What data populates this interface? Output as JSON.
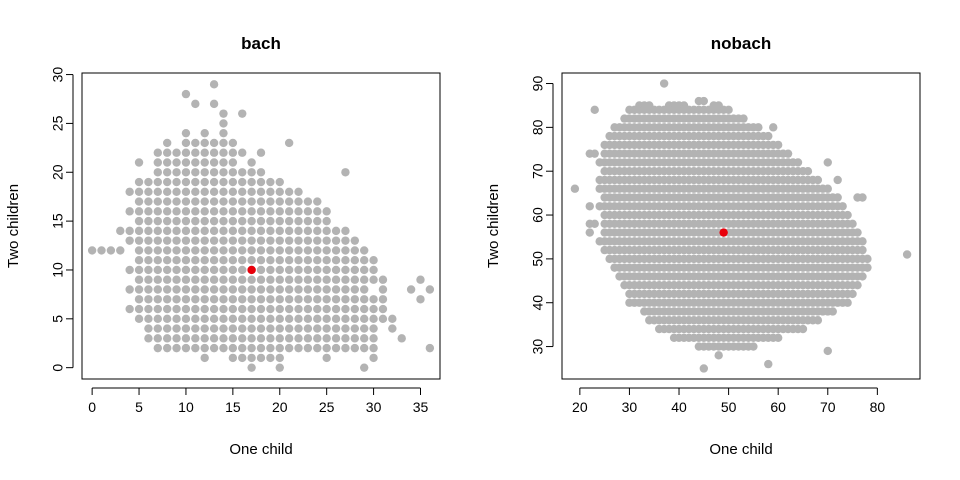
{
  "colors": {
    "points": "#b3b3b3",
    "highlight": "#e8000b",
    "frame": "#000000"
  },
  "chart_data": [
    {
      "type": "scatter",
      "title": "bach",
      "xlabel": "One child",
      "ylabel": "Two children",
      "xlim": [
        -1.08,
        37.08
      ],
      "ylim": [
        -1.16,
        30.16
      ],
      "xticks": [
        0,
        5,
        10,
        15,
        20,
        25,
        30,
        35
      ],
      "yticks": [
        0,
        5,
        10,
        15,
        20,
        25,
        30
      ],
      "grid": false,
      "legend": "none",
      "cloud": {
        "rows": [
          {
            "y": 29,
            "x": [
              [
                13,
                13
              ]
            ]
          },
          {
            "y": 28,
            "x": [
              [
                10,
                10
              ]
            ]
          },
          {
            "y": 27,
            "x": [
              [
                11,
                11
              ],
              [
                13,
                13
              ]
            ]
          },
          {
            "y": 26,
            "x": [
              [
                14,
                14
              ],
              [
                16,
                16
              ]
            ]
          },
          {
            "y": 25,
            "x": [
              [
                14,
                14
              ]
            ]
          },
          {
            "y": 24,
            "x": [
              [
                10,
                10
              ],
              [
                12,
                12
              ],
              [
                14,
                14
              ]
            ]
          },
          {
            "y": 23,
            "x": [
              [
                8,
                8
              ],
              [
                10,
                15
              ],
              [
                21,
                21
              ]
            ]
          },
          {
            "y": 22,
            "x": [
              [
                7,
                16
              ],
              [
                18,
                18
              ]
            ]
          },
          {
            "y": 21,
            "x": [
              [
                5,
                5
              ],
              [
                7,
                15
              ],
              [
                17,
                17
              ]
            ]
          },
          {
            "y": 20,
            "x": [
              [
                7,
                18
              ],
              [
                27,
                27
              ]
            ]
          },
          {
            "y": 19,
            "x": [
              [
                5,
                20
              ]
            ]
          },
          {
            "y": 18,
            "x": [
              [
                4,
                22
              ]
            ]
          },
          {
            "y": 17,
            "x": [
              [
                5,
                24
              ]
            ]
          },
          {
            "y": 16,
            "x": [
              [
                4,
                25
              ]
            ]
          },
          {
            "y": 15,
            "x": [
              [
                5,
                25
              ]
            ]
          },
          {
            "y": 14,
            "x": [
              [
                3,
                27
              ]
            ]
          },
          {
            "y": 13,
            "x": [
              [
                4,
                28
              ]
            ]
          },
          {
            "y": 12,
            "x": [
              [
                0,
                3
              ],
              [
                5,
                29
              ]
            ]
          },
          {
            "y": 11,
            "x": [
              [
                5,
                30
              ]
            ]
          },
          {
            "y": 10,
            "x": [
              [
                4,
                30
              ]
            ]
          },
          {
            "y": 9,
            "x": [
              [
                5,
                31
              ],
              [
                35,
                35
              ]
            ]
          },
          {
            "y": 8,
            "x": [
              [
                4,
                29
              ],
              [
                31,
                31
              ],
              [
                34,
                34
              ],
              [
                36,
                36
              ]
            ]
          },
          {
            "y": 7,
            "x": [
              [
                5,
                31
              ],
              [
                35,
                35
              ]
            ]
          },
          {
            "y": 6,
            "x": [
              [
                4,
                31
              ]
            ]
          },
          {
            "y": 5,
            "x": [
              [
                5,
                32
              ]
            ]
          },
          {
            "y": 4,
            "x": [
              [
                6,
                30
              ],
              [
                32,
                32
              ]
            ]
          },
          {
            "y": 3,
            "x": [
              [
                6,
                30
              ],
              [
                33,
                33
              ]
            ]
          },
          {
            "y": 2,
            "x": [
              [
                7,
                30
              ],
              [
                36,
                36
              ]
            ]
          },
          {
            "y": 1,
            "x": [
              [
                12,
                12
              ],
              [
                15,
                20
              ],
              [
                25,
                25
              ],
              [
                30,
                30
              ]
            ]
          },
          {
            "y": 0,
            "x": [
              [
                17,
                17
              ],
              [
                20,
                20
              ],
              [
                29,
                29
              ]
            ]
          }
        ]
      },
      "highlight_point": {
        "x": 17,
        "y": 10
      }
    },
    {
      "type": "scatter",
      "title": "nobach",
      "xlabel": "One child",
      "ylabel": "Two children",
      "xlim": [
        16.4,
        88.6
      ],
      "ylim": [
        22.6,
        92.4
      ],
      "xticks": [
        20,
        30,
        40,
        50,
        60,
        70,
        80
      ],
      "yticks": [
        30,
        40,
        50,
        60,
        70,
        80,
        90
      ],
      "grid": false,
      "legend": "none",
      "cloud": {
        "rows": [
          {
            "y": 90,
            "x": [
              [
                37,
                37
              ]
            ]
          },
          {
            "y": 86,
            "x": [
              [
                44,
                45
              ]
            ]
          },
          {
            "y": 85,
            "x": [
              [
                32,
                34
              ],
              [
                38,
                41
              ],
              [
                47,
                48
              ]
            ]
          },
          {
            "y": 84,
            "x": [
              [
                23,
                23
              ],
              [
                30,
                50
              ]
            ]
          },
          {
            "y": 82,
            "x": [
              [
                29,
                53
              ]
            ]
          },
          {
            "y": 80,
            "x": [
              [
                27,
                56
              ],
              [
                59,
                59
              ]
            ]
          },
          {
            "y": 78,
            "x": [
              [
                26,
                58
              ]
            ]
          },
          {
            "y": 76,
            "x": [
              [
                25,
                60
              ]
            ]
          },
          {
            "y": 74,
            "x": [
              [
                22,
                23
              ],
              [
                25,
                62
              ]
            ]
          },
          {
            "y": 72,
            "x": [
              [
                24,
                64
              ],
              [
                70,
                70
              ]
            ]
          },
          {
            "y": 70,
            "x": [
              [
                25,
                66
              ]
            ]
          },
          {
            "y": 68,
            "x": [
              [
                24,
                68
              ],
              [
                72,
                72
              ]
            ]
          },
          {
            "y": 66,
            "x": [
              [
                19,
                19
              ],
              [
                24,
                70
              ]
            ]
          },
          {
            "y": 64,
            "x": [
              [
                25,
                72
              ],
              [
                76,
                77
              ]
            ]
          },
          {
            "y": 62,
            "x": [
              [
                22,
                22
              ],
              [
                24,
                73
              ]
            ]
          },
          {
            "y": 60,
            "x": [
              [
                25,
                74
              ]
            ]
          },
          {
            "y": 58,
            "x": [
              [
                22,
                23
              ],
              [
                25,
                75
              ]
            ]
          },
          {
            "y": 56,
            "x": [
              [
                22,
                22
              ],
              [
                25,
                76
              ]
            ]
          },
          {
            "y": 54,
            "x": [
              [
                24,
                77
              ]
            ]
          },
          {
            "y": 52,
            "x": [
              [
                25,
                77
              ]
            ]
          },
          {
            "y": 51,
            "x": [
              [
                86,
                86
              ]
            ]
          },
          {
            "y": 50,
            "x": [
              [
                26,
                78
              ]
            ]
          },
          {
            "y": 48,
            "x": [
              [
                27,
                78
              ]
            ]
          },
          {
            "y": 46,
            "x": [
              [
                28,
                77
              ]
            ]
          },
          {
            "y": 44,
            "x": [
              [
                29,
                76
              ]
            ]
          },
          {
            "y": 42,
            "x": [
              [
                30,
                75
              ]
            ]
          },
          {
            "y": 40,
            "x": [
              [
                30,
                74
              ]
            ]
          },
          {
            "y": 38,
            "x": [
              [
                33,
                71
              ]
            ]
          },
          {
            "y": 36,
            "x": [
              [
                34,
                68
              ]
            ]
          },
          {
            "y": 34,
            "x": [
              [
                36,
                65
              ]
            ]
          },
          {
            "y": 32,
            "x": [
              [
                39,
                60
              ]
            ]
          },
          {
            "y": 30,
            "x": [
              [
                44,
                55
              ]
            ]
          },
          {
            "y": 29,
            "x": [
              [
                70,
                70
              ]
            ]
          },
          {
            "y": 28,
            "x": [
              [
                48,
                48
              ]
            ]
          },
          {
            "y": 26,
            "x": [
              [
                58,
                58
              ]
            ]
          },
          {
            "y": 25,
            "x": [
              [
                45,
                45
              ]
            ]
          }
        ]
      },
      "highlight_point": {
        "x": 49,
        "y": 56
      }
    }
  ]
}
